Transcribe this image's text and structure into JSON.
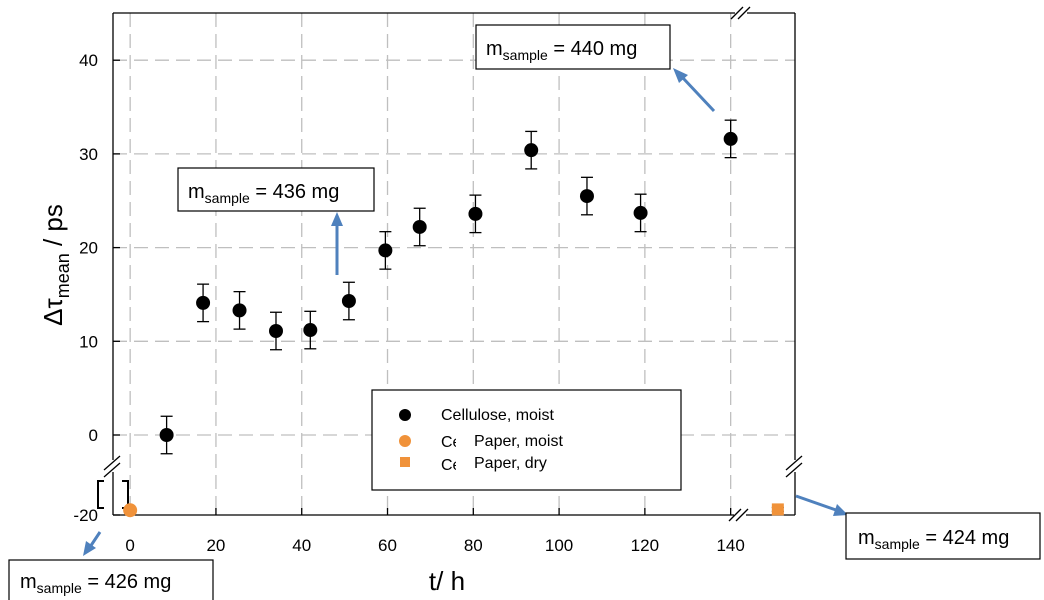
{
  "chart_data": {
    "type": "scatter",
    "title": "",
    "xlabel": "t/ h",
    "ylabel": "Δτmean / ps",
    "xlim": [
      -4,
      155
    ],
    "ylim": [
      -21,
      45
    ],
    "x_ticks": [
      0,
      20,
      40,
      60,
      80,
      100,
      120,
      140
    ],
    "y_ticks": [
      -20,
      0,
      10,
      20,
      30,
      40
    ],
    "grid": true,
    "legend_position": "lower-center",
    "series": [
      {
        "name": "Cellulose, moist",
        "marker": "circle",
        "color": "#000000",
        "points": [
          {
            "x": 8.5,
            "y": 0.0,
            "err": 2.0
          },
          {
            "x": 17,
            "y": 14.1,
            "err": 2.0
          },
          {
            "x": 25.5,
            "y": 13.3,
            "err": 2.0
          },
          {
            "x": 34,
            "y": 11.1,
            "err": 2.0
          },
          {
            "x": 42,
            "y": 11.2,
            "err": 2.0
          },
          {
            "x": 51,
            "y": 14.3,
            "err": 2.0
          },
          {
            "x": 59.5,
            "y": 19.7,
            "err": 2.0
          },
          {
            "x": 67.5,
            "y": 22.2,
            "err": 2.0
          },
          {
            "x": 80.5,
            "y": 23.6,
            "err": 2.0
          },
          {
            "x": 93.5,
            "y": 30.4,
            "err": 2.0
          },
          {
            "x": 106.5,
            "y": 25.5,
            "err": 2.0
          },
          {
            "x": 119,
            "y": 23.7,
            "err": 2.0
          },
          {
            "x": 140,
            "y": 31.6,
            "err": 2.0
          }
        ]
      },
      {
        "name": "Paper, moist",
        "marker": "circle",
        "color": "#F0923A",
        "points": [
          {
            "x": 0,
            "y": -17,
            "err": 1.2
          }
        ]
      },
      {
        "name": "Paper, dry",
        "marker": "square",
        "color": "#F0923A",
        "points": [
          {
            "x": 151,
            "y": -16.5,
            "err": 1.2
          }
        ]
      }
    ],
    "legend_overlap_labels": [
      "Ce",
      "Ce"
    ],
    "annotations": [
      {
        "prefix": "m",
        "sub": "sample",
        "text": " = 440 mg"
      },
      {
        "prefix": "m",
        "sub": "sample",
        "text": " = 436 mg"
      },
      {
        "prefix": "m",
        "sub": "sample",
        "text": " = 424 mg"
      },
      {
        "prefix": "m",
        "sub": "sample",
        "text": " = 426 mg"
      }
    ],
    "ylabel_parts": {
      "prefix": "Δτ",
      "sub": "mean",
      "suffix": " / ps"
    },
    "colors": {
      "arrow": "#4F81BD",
      "grid": "#BFBFBF",
      "marker_orange": "#F0923A"
    }
  }
}
